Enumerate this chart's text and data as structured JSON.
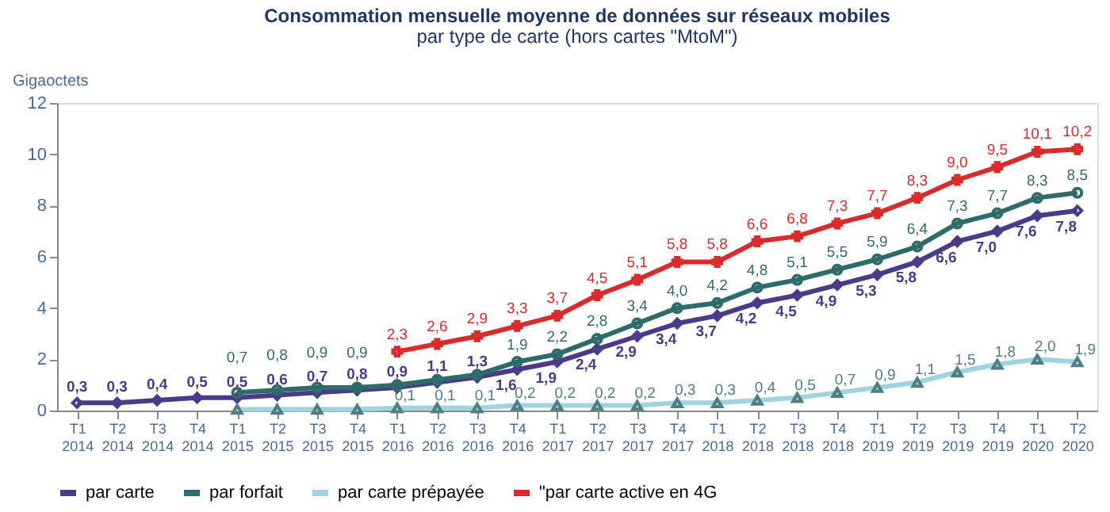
{
  "chart_data": {
    "type": "line",
    "title": "Consommation mensuelle moyenne de données sur réseaux mobiles",
    "subtitle": "par type de carte (hors cartes \"MtoM\")",
    "ylabel": "Gigaoctets",
    "categories": [
      "T1 2014",
      "T2 2014",
      "T3 2014",
      "T4 2014",
      "T1 2015",
      "T2 2015",
      "T3 2015",
      "T4 2015",
      "T1 2016",
      "T2 2016",
      "T3 2016",
      "T4 2016",
      "T1 2017",
      "T2 2017",
      "T3 2017",
      "T4 2017",
      "T1 2018",
      "T2 2018",
      "T3 2018",
      "T4 2018",
      "T1 2019",
      "T2 2019",
      "T3 2019",
      "T4 2019",
      "T1 2020",
      "T2 2020"
    ],
    "ylim": [
      0,
      12
    ],
    "yticks": [
      0,
      2,
      4,
      6,
      8,
      10,
      12
    ],
    "grid": false,
    "legend": "bottom",
    "line_style": "solid",
    "series": [
      {
        "name": "par carte",
        "color": "#4b3a8a",
        "marker": "diamond",
        "values": [
          0.3,
          0.3,
          0.4,
          0.5,
          0.5,
          0.6,
          0.7,
          0.8,
          0.9,
          1.1,
          1.3,
          1.6,
          1.9,
          2.4,
          2.9,
          3.4,
          3.7,
          4.2,
          4.5,
          4.9,
          5.3,
          5.8,
          6.6,
          7.0,
          7.6,
          7.8
        ],
        "value_labels": [
          "0,3",
          "0,3",
          "0,4",
          "0,5",
          "0,5",
          "0,6",
          "0,7",
          "0,8",
          "0,9",
          "1,1",
          "1,3",
          "1,6",
          "1,9",
          "2,4",
          "2,9",
          "3,4",
          "3,7",
          "4,2",
          "4,5",
          "4,9",
          "5,3",
          "5,8",
          "6,6",
          "7,0",
          "7,6",
          "7,8"
        ]
      },
      {
        "name": "par forfait",
        "color": "#2e6b6b",
        "marker": "circle",
        "values": [
          null,
          null,
          null,
          null,
          0.7,
          0.8,
          0.9,
          0.9,
          1.0,
          1.2,
          1.4,
          1.9,
          2.2,
          2.8,
          3.4,
          4.0,
          4.2,
          4.8,
          5.1,
          5.5,
          5.9,
          6.4,
          7.3,
          7.7,
          8.3,
          8.5
        ],
        "value_labels": [
          null,
          null,
          null,
          null,
          "0,7",
          "0,8",
          "0,9",
          "0,9",
          null,
          null,
          null,
          "1,9",
          "2,2",
          "2,8",
          "3,4",
          "4,0",
          "4,2",
          "4,8",
          "5,1",
          "5,5",
          "5,9",
          "6,4",
          "7,3",
          "7,7",
          "8,3",
          "8,5"
        ]
      },
      {
        "name": "par carte prépayée",
        "color": "#9fd3e0",
        "marker": "triangle",
        "values": [
          null,
          null,
          null,
          null,
          0.05,
          0.05,
          0.05,
          0.05,
          0.1,
          0.1,
          0.1,
          0.2,
          0.2,
          0.2,
          0.2,
          0.3,
          0.3,
          0.4,
          0.5,
          0.7,
          0.9,
          1.1,
          1.5,
          1.8,
          2.0,
          1.9
        ],
        "value_labels": [
          null,
          null,
          null,
          null,
          null,
          null,
          null,
          null,
          "0,1",
          "0,1",
          "0,1",
          "0,2",
          "0,2",
          "0,2",
          "0,2",
          "0,3",
          "0,3",
          "0,4",
          "0,5",
          "0,7",
          "0,9",
          "1,1",
          "1,5",
          "1,8",
          "2,0",
          "1,9"
        ]
      },
      {
        "name": "\"par carte active en 4G",
        "color": "#d92b2b",
        "marker": "cross",
        "values": [
          null,
          null,
          null,
          null,
          null,
          null,
          null,
          null,
          2.3,
          2.6,
          2.9,
          3.3,
          3.7,
          4.5,
          5.1,
          5.8,
          5.8,
          6.6,
          6.8,
          7.3,
          7.7,
          8.3,
          9.0,
          9.5,
          10.1,
          10.2
        ],
        "value_labels": [
          null,
          null,
          null,
          null,
          null,
          null,
          null,
          null,
          "2,3",
          "2,6",
          "2,9",
          "3,3",
          "3,7",
          "4,5",
          "5,1",
          "5,8",
          "5,8",
          "6,6",
          "6,8",
          "7,3",
          "7,7",
          "8,3",
          "9,0",
          "9,5",
          "10,1",
          "10,2"
        ]
      }
    ]
  }
}
